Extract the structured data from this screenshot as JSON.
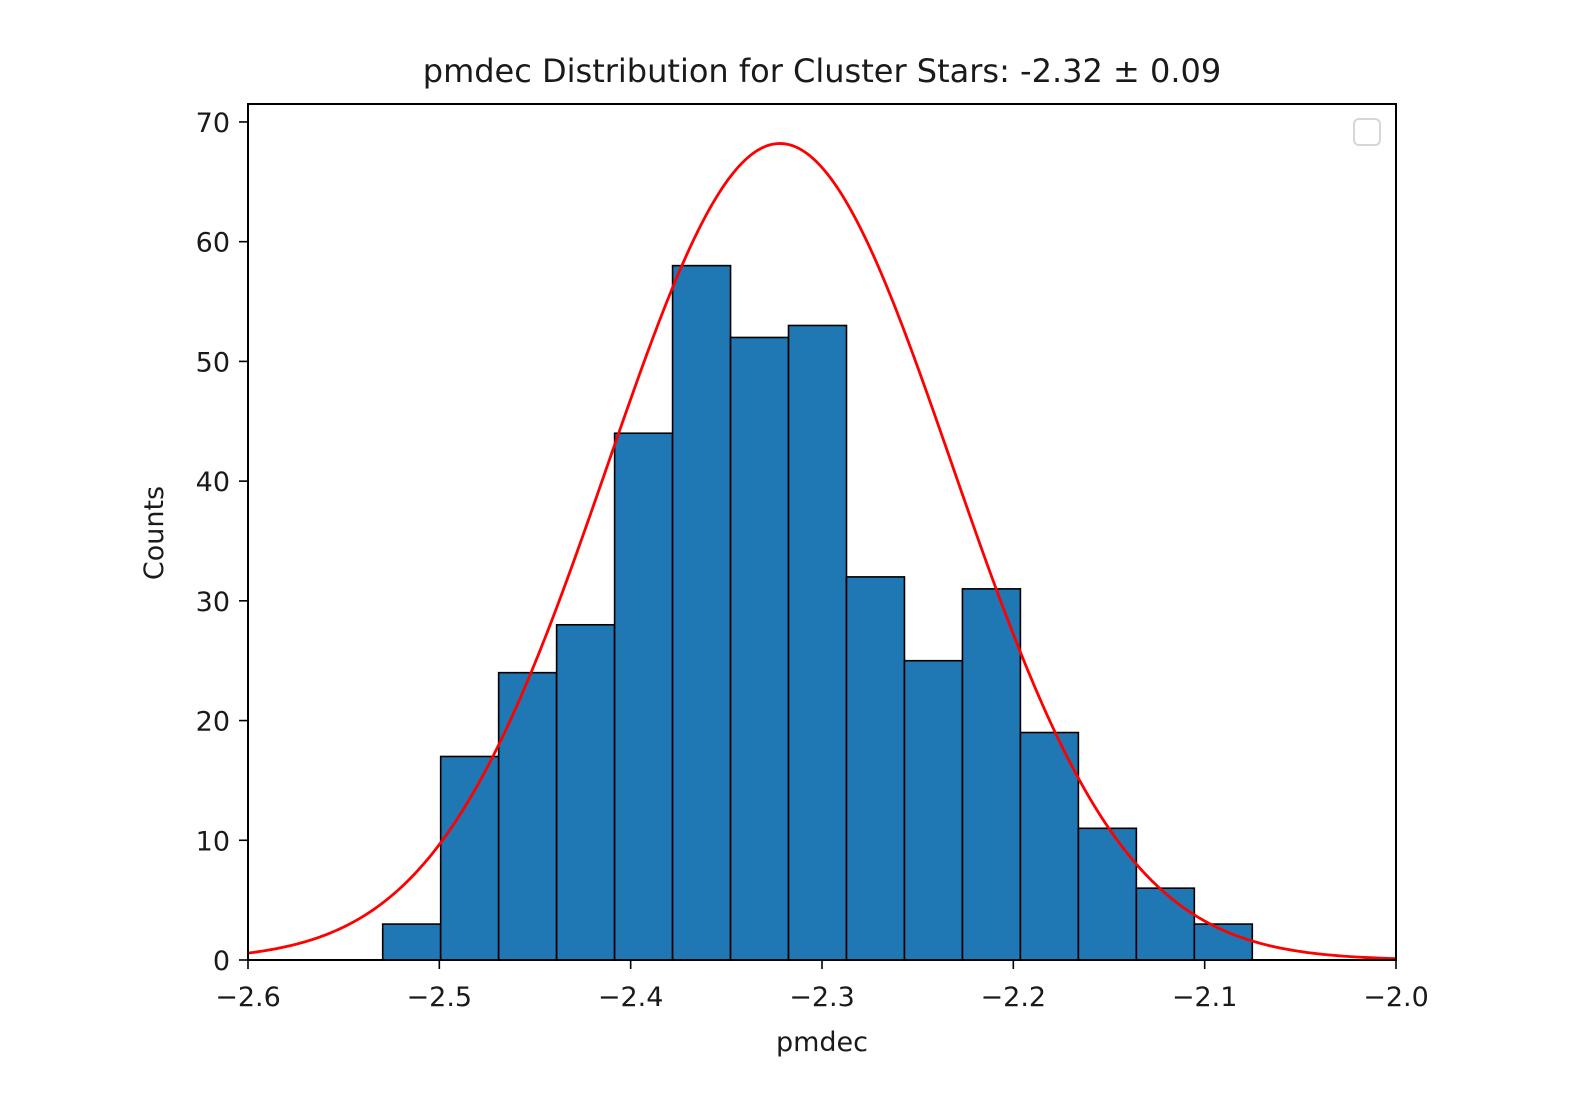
{
  "chart_data": {
    "type": "bar",
    "title": "pmdec Distribution for Cluster Stars:  -2.32 ± 0.09",
    "xlabel": "pmdec",
    "ylabel": "Counts",
    "xlim": [
      -2.6,
      -2.0
    ],
    "ylim": [
      0,
      71.5
    ],
    "x_ticks": [
      -2.6,
      -2.5,
      -2.4,
      -2.3,
      -2.2,
      -2.1,
      -2.0
    ],
    "x_tick_labels": [
      "−2.6",
      "−2.5",
      "−2.4",
      "−2.3",
      "−2.2",
      "−2.1",
      "−2.0"
    ],
    "y_ticks": [
      0,
      10,
      20,
      30,
      40,
      50,
      60,
      70
    ],
    "y_tick_labels": [
      "0",
      "10",
      "20",
      "30",
      "40",
      "50",
      "60",
      "70"
    ],
    "grid": false,
    "legend": {
      "placement": "top-right",
      "entries": []
    },
    "histogram": {
      "bin_edges": [
        -2.5296,
        -2.4993,
        -2.469,
        -2.4387,
        -2.4084,
        -2.3781,
        -2.3478,
        -2.3175,
        -2.2872,
        -2.2569,
        -2.2266,
        -2.1963,
        -2.166,
        -2.1357,
        -2.1054,
        -2.0751
      ],
      "counts": [
        3,
        17,
        24,
        28,
        44,
        58,
        52,
        53,
        32,
        25,
        31,
        19,
        11,
        6,
        3
      ],
      "color": "#1f77b4",
      "edgecolor": "#000000"
    },
    "fit": {
      "type": "gaussian",
      "mean": -2.322,
      "sigma": 0.09,
      "amplitude": 68.2,
      "color": "#ff0000"
    }
  }
}
